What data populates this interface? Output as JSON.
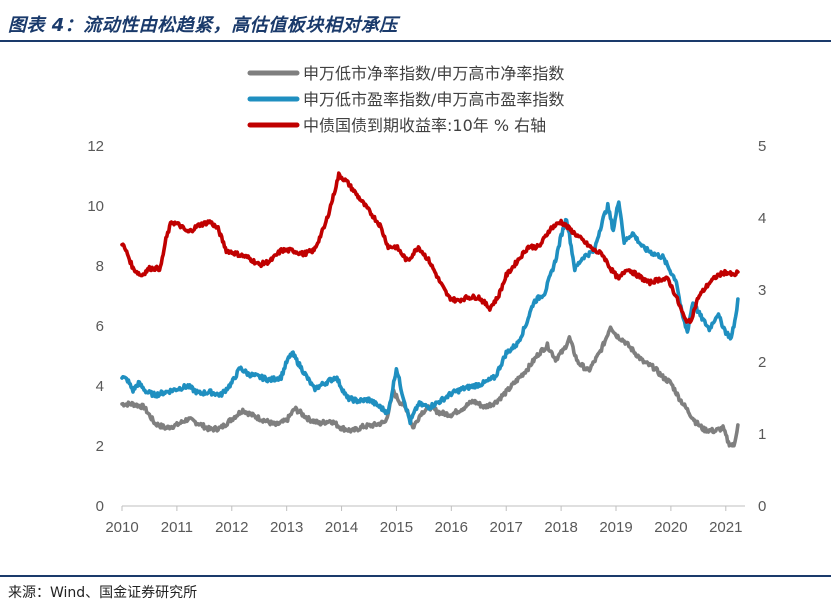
{
  "header": {
    "title": "图表 4：流动性由松趋紧，高估值板块相对承压"
  },
  "footer": {
    "source": "来源：Wind、国金证券研究所"
  },
  "chart_data": {
    "type": "line",
    "title": "",
    "xlabel": "",
    "ylabel": "",
    "x_ticks": [
      "2010",
      "2011",
      "2012",
      "2013",
      "2014",
      "2015",
      "2016",
      "2017",
      "2018",
      "2019",
      "2020",
      "2021"
    ],
    "x_range": [
      2010.0,
      2021.35
    ],
    "y_left": {
      "range": [
        0,
        12
      ],
      "ticks": [
        "0",
        "2",
        "4",
        "6",
        "8",
        "10",
        "12"
      ]
    },
    "y_right": {
      "range": [
        0,
        5
      ],
      "ticks": [
        "0",
        "1",
        "2",
        "3",
        "4",
        "5"
      ]
    },
    "legend_position": "top-center",
    "series": [
      {
        "name": "申万低市净率指数/申万高市净率指数",
        "color": "#7f7f7f",
        "axis": "left",
        "points": [
          [
            2010.0,
            3.4
          ],
          [
            2010.2,
            3.4
          ],
          [
            2010.4,
            3.3
          ],
          [
            2010.6,
            2.75
          ],
          [
            2010.8,
            2.6
          ],
          [
            2011.0,
            2.7
          ],
          [
            2011.2,
            2.9
          ],
          [
            2011.4,
            2.75
          ],
          [
            2011.6,
            2.55
          ],
          [
            2011.8,
            2.6
          ],
          [
            2012.0,
            2.9
          ],
          [
            2012.2,
            3.2
          ],
          [
            2012.4,
            3.0
          ],
          [
            2012.6,
            2.85
          ],
          [
            2012.8,
            2.7
          ],
          [
            2013.0,
            2.85
          ],
          [
            2013.15,
            3.25
          ],
          [
            2013.4,
            2.9
          ],
          [
            2013.6,
            2.75
          ],
          [
            2013.8,
            2.85
          ],
          [
            2014.0,
            2.6
          ],
          [
            2014.2,
            2.5
          ],
          [
            2014.4,
            2.65
          ],
          [
            2014.6,
            2.7
          ],
          [
            2014.8,
            2.8
          ],
          [
            2014.95,
            3.8
          ],
          [
            2015.05,
            3.5
          ],
          [
            2015.2,
            3.2
          ],
          [
            2015.3,
            2.6
          ],
          [
            2015.45,
            3.1
          ],
          [
            2015.6,
            3.3
          ],
          [
            2015.8,
            3.1
          ],
          [
            2016.0,
            3.05
          ],
          [
            2016.2,
            3.25
          ],
          [
            2016.4,
            3.5
          ],
          [
            2016.6,
            3.3
          ],
          [
            2016.8,
            3.45
          ],
          [
            2017.0,
            3.8
          ],
          [
            2017.2,
            4.2
          ],
          [
            2017.4,
            4.6
          ],
          [
            2017.6,
            5.1
          ],
          [
            2017.75,
            5.35
          ],
          [
            2017.9,
            4.9
          ],
          [
            2018.05,
            5.2
          ],
          [
            2018.15,
            5.6
          ],
          [
            2018.3,
            4.8
          ],
          [
            2018.5,
            4.5
          ],
          [
            2018.7,
            5.1
          ],
          [
            2018.8,
            5.5
          ],
          [
            2018.9,
            6.0
          ],
          [
            2019.0,
            5.7
          ],
          [
            2019.15,
            5.5
          ],
          [
            2019.3,
            5.2
          ],
          [
            2019.5,
            4.8
          ],
          [
            2019.7,
            4.6
          ],
          [
            2019.85,
            4.3
          ],
          [
            2020.0,
            4.1
          ],
          [
            2020.15,
            3.6
          ],
          [
            2020.3,
            3.2
          ],
          [
            2020.45,
            2.8
          ],
          [
            2020.6,
            2.55
          ],
          [
            2020.8,
            2.5
          ],
          [
            2020.95,
            2.6
          ],
          [
            2021.05,
            2.1
          ],
          [
            2021.15,
            2.0
          ],
          [
            2021.22,
            2.7
          ]
        ]
      },
      {
        "name": "申万低市盈率指数/申万高市盈率指数",
        "color": "#1f8fc0",
        "axis": "left",
        "points": [
          [
            2010.0,
            4.3
          ],
          [
            2010.1,
            4.2
          ],
          [
            2010.2,
            3.85
          ],
          [
            2010.3,
            4.1
          ],
          [
            2010.45,
            3.8
          ],
          [
            2010.6,
            3.7
          ],
          [
            2010.8,
            3.8
          ],
          [
            2011.0,
            3.9
          ],
          [
            2011.2,
            4.0
          ],
          [
            2011.4,
            3.75
          ],
          [
            2011.6,
            3.8
          ],
          [
            2011.8,
            3.7
          ],
          [
            2012.0,
            4.1
          ],
          [
            2012.15,
            4.6
          ],
          [
            2012.3,
            4.4
          ],
          [
            2012.5,
            4.3
          ],
          [
            2012.7,
            4.2
          ],
          [
            2012.9,
            4.3
          ],
          [
            2013.0,
            4.8
          ],
          [
            2013.1,
            5.1
          ],
          [
            2013.3,
            4.5
          ],
          [
            2013.5,
            3.9
          ],
          [
            2013.7,
            4.1
          ],
          [
            2013.9,
            4.3
          ],
          [
            2014.1,
            3.6
          ],
          [
            2014.3,
            3.5
          ],
          [
            2014.5,
            3.55
          ],
          [
            2014.7,
            3.3
          ],
          [
            2014.85,
            3.1
          ],
          [
            2015.0,
            4.6
          ],
          [
            2015.1,
            3.8
          ],
          [
            2015.25,
            2.8
          ],
          [
            2015.4,
            3.4
          ],
          [
            2015.6,
            3.3
          ],
          [
            2015.8,
            3.5
          ],
          [
            2016.0,
            3.75
          ],
          [
            2016.2,
            3.9
          ],
          [
            2016.4,
            4.0
          ],
          [
            2016.6,
            4.1
          ],
          [
            2016.8,
            4.3
          ],
          [
            2017.0,
            5.1
          ],
          [
            2017.2,
            5.4
          ],
          [
            2017.35,
            6.0
          ],
          [
            2017.5,
            6.8
          ],
          [
            2017.7,
            7.1
          ],
          [
            2017.9,
            8.2
          ],
          [
            2018.0,
            9.0
          ],
          [
            2018.1,
            9.6
          ],
          [
            2018.25,
            7.9
          ],
          [
            2018.4,
            8.3
          ],
          [
            2018.6,
            8.5
          ],
          [
            2018.75,
            9.5
          ],
          [
            2018.85,
            10.0
          ],
          [
            2018.95,
            9.2
          ],
          [
            2019.05,
            10.2
          ],
          [
            2019.15,
            8.8
          ],
          [
            2019.3,
            9.1
          ],
          [
            2019.5,
            8.6
          ],
          [
            2019.7,
            8.4
          ],
          [
            2019.85,
            8.3
          ],
          [
            2020.0,
            7.8
          ],
          [
            2020.1,
            7.5
          ],
          [
            2020.2,
            6.4
          ],
          [
            2020.3,
            5.8
          ],
          [
            2020.4,
            6.8
          ],
          [
            2020.55,
            6.3
          ],
          [
            2020.7,
            5.9
          ],
          [
            2020.85,
            6.4
          ],
          [
            2021.0,
            5.8
          ],
          [
            2021.1,
            5.6
          ],
          [
            2021.18,
            6.3
          ],
          [
            2021.22,
            6.9
          ]
        ]
      },
      {
        "name": "中债国债到期收益率:10年 % 右轴",
        "color": "#c00000",
        "axis": "right",
        "points": [
          [
            2010.0,
            3.65
          ],
          [
            2010.1,
            3.5
          ],
          [
            2010.2,
            3.3
          ],
          [
            2010.35,
            3.2
          ],
          [
            2010.5,
            3.3
          ],
          [
            2010.7,
            3.3
          ],
          [
            2010.8,
            3.7
          ],
          [
            2010.9,
            3.95
          ],
          [
            2011.05,
            3.9
          ],
          [
            2011.2,
            3.8
          ],
          [
            2011.4,
            3.9
          ],
          [
            2011.6,
            3.95
          ],
          [
            2011.75,
            3.85
          ],
          [
            2011.9,
            3.55
          ],
          [
            2012.1,
            3.5
          ],
          [
            2012.3,
            3.45
          ],
          [
            2012.5,
            3.35
          ],
          [
            2012.7,
            3.4
          ],
          [
            2012.9,
            3.55
          ],
          [
            2013.1,
            3.55
          ],
          [
            2013.3,
            3.5
          ],
          [
            2013.5,
            3.55
          ],
          [
            2013.7,
            3.9
          ],
          [
            2013.85,
            4.3
          ],
          [
            2013.95,
            4.6
          ],
          [
            2014.1,
            4.5
          ],
          [
            2014.3,
            4.3
          ],
          [
            2014.5,
            4.1
          ],
          [
            2014.7,
            3.9
          ],
          [
            2014.85,
            3.6
          ],
          [
            2015.0,
            3.6
          ],
          [
            2015.2,
            3.4
          ],
          [
            2015.4,
            3.6
          ],
          [
            2015.6,
            3.4
          ],
          [
            2015.8,
            3.1
          ],
          [
            2015.95,
            2.9
          ],
          [
            2016.1,
            2.85
          ],
          [
            2016.3,
            2.9
          ],
          [
            2016.5,
            2.9
          ],
          [
            2016.7,
            2.75
          ],
          [
            2016.85,
            2.9
          ],
          [
            2017.0,
            3.2
          ],
          [
            2017.2,
            3.4
          ],
          [
            2017.4,
            3.6
          ],
          [
            2017.6,
            3.6
          ],
          [
            2017.8,
            3.85
          ],
          [
            2018.0,
            3.95
          ],
          [
            2018.15,
            3.85
          ],
          [
            2018.3,
            3.75
          ],
          [
            2018.45,
            3.65
          ],
          [
            2018.6,
            3.55
          ],
          [
            2018.75,
            3.5
          ],
          [
            2018.9,
            3.3
          ],
          [
            2019.05,
            3.15
          ],
          [
            2019.2,
            3.3
          ],
          [
            2019.4,
            3.2
          ],
          [
            2019.6,
            3.1
          ],
          [
            2019.8,
            3.15
          ],
          [
            2019.95,
            3.15
          ],
          [
            2020.1,
            2.9
          ],
          [
            2020.25,
            2.6
          ],
          [
            2020.35,
            2.55
          ],
          [
            2020.5,
            2.9
          ],
          [
            2020.7,
            3.1
          ],
          [
            2020.85,
            3.2
          ],
          [
            2021.0,
            3.25
          ],
          [
            2021.15,
            3.2
          ],
          [
            2021.22,
            3.25
          ]
        ]
      }
    ]
  }
}
